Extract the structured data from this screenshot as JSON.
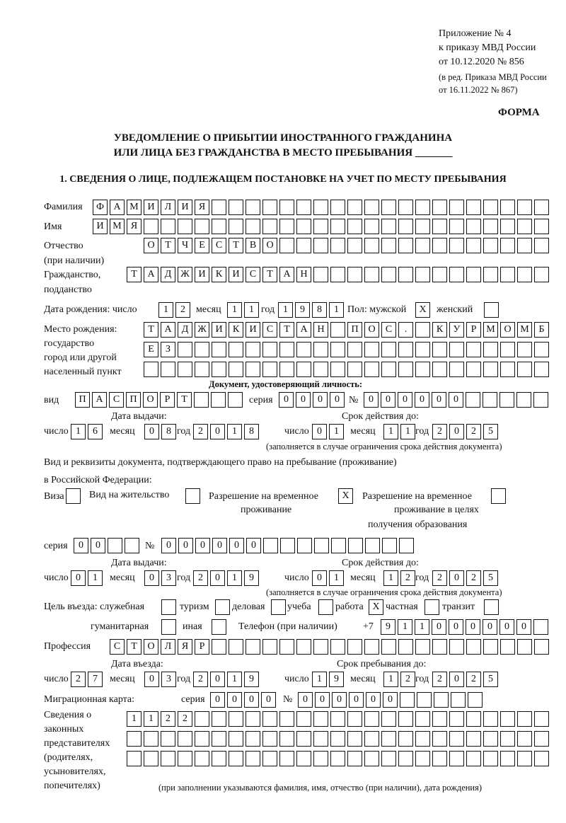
{
  "header": {
    "line1": "Приложение № 4",
    "line2": "к приказу МВД России",
    "line3": "от 10.12.2020 № 856",
    "line4": "(в ред. Приказа МВД России",
    "line5": "от 16.11.2022 № 867)",
    "forma": "ФОРМА"
  },
  "title": {
    "line1": "УВЕДОМЛЕНИЕ О ПРИБЫТИИ ИНОСТРАННОГО ГРАЖДАНИНА",
    "line2": "ИЛИ ЛИЦА БЕЗ ГРАЖДАНСТВА В МЕСТО ПРЕБЫВАНИЯ _______"
  },
  "section1": "1. СВЕДЕНИЯ О ЛИЦЕ, ПОДЛЕЖАЩЕМ ПОСТАНОВКЕ НА УЧЕТ ПО МЕСТУ ПРЕБЫВАНИЯ",
  "labels": {
    "surname": "Фамилия",
    "name": "Имя",
    "patronymic": "Отчество",
    "patronymic2": "(при наличии)",
    "citizenship": "Гражданство,",
    "citizenship2": "подданство",
    "birth_date": "Дата рождения:  число",
    "day": "число",
    "month": "месяц",
    "year": "год",
    "sex": "Пол: мужской",
    "female": "женский",
    "birth_place1": "Место рождения:",
    "birth_place2": "государство",
    "birth_place3": "город или другой",
    "birth_place4": "населенный пункт",
    "id_doc": "Документ, удостоверяющий личность:",
    "kind": "вид",
    "series": "серия",
    "number": "№",
    "issue_date": "Дата выдачи:",
    "valid_until": "Срок действия до:",
    "valid_note": "(заполняется в случае ограничения срока действия документа)",
    "right_doc1": "Вид и реквизиты документа, подтверждающего право на пребывание (проживание)",
    "right_doc2": "в Российской Федерации:",
    "visa": "Виза",
    "residence": "Вид на жительство",
    "temp1": "Разрешение на временное",
    "temp2": "проживание",
    "edu1": "Разрешение на временное",
    "edu2": "проживание в целях",
    "edu3": "получения образования",
    "purpose": "Цель въезда: служебная",
    "tourism": "туризм",
    "business": "деловая",
    "study": "учеба",
    "work": "работа",
    "private": "частная",
    "transit": "транзит",
    "humanitarian": "гуманитарная",
    "other": "иная",
    "phone": "Телефон (при наличии)",
    "phone_prefix": "+7",
    "profession": "Профессия",
    "entry_date": "Дата въезда:",
    "stay_until": "Срок пребывания до:",
    "migration_card": "Миграционная карта:",
    "reps1": "Сведения о",
    "reps2": "законных",
    "reps3": "представителях",
    "reps4": "(родителях,",
    "reps5": "усыновителях,",
    "reps6": "попечителях)",
    "reps_note": "(при заполнении указываются фамилия, имя, отчество (при наличии), дата рождения)"
  },
  "values": {
    "surname": "ФАМИЛИЯ",
    "name": "ИМЯ",
    "patronymic": "ОТЧЕСТВО",
    "citizenship": "ТАДЖИКИСТАН",
    "birth_day": "12",
    "birth_month": "11",
    "birth_year": "1981",
    "male": "X",
    "female": "",
    "birth_place1": "ТАДЖИКИСТАН ПОС. КУРМОМБ",
    "birth_place2": "ЕЗ",
    "birth_place3": "",
    "doc_kind": "ПАСПОРТ",
    "doc_series": "0000",
    "doc_number": "000000",
    "doc_issue_day": "16",
    "doc_issue_month": "08",
    "doc_issue_year": "2018",
    "doc_valid_day": "01",
    "doc_valid_month": "11",
    "doc_valid_year": "2025",
    "visa": "",
    "residence": "",
    "temp_residence": "X",
    "temp_residence_edu": "",
    "right_series": "00",
    "right_number": "000000",
    "right_issue_day": "01",
    "right_issue_month": "03",
    "right_issue_year": "2019",
    "right_valid_day": "01",
    "right_valid_month": "12",
    "right_valid_year": "2025",
    "p_service": "",
    "p_tourism": "",
    "p_business": "",
    "p_study": "",
    "p_work": "X",
    "p_private": "",
    "p_transit": "",
    "p_humanitarian": "",
    "p_other": "",
    "phone": "911000000",
    "profession": "СТОЛЯР",
    "entry_day": "27",
    "entry_month": "03",
    "entry_year": "2019",
    "stay_day": "19",
    "stay_month": "12",
    "stay_year": "2025",
    "mc_series": "0000",
    "mc_number": "000000",
    "reps1": "1122",
    "reps2": "",
    "reps3": ""
  }
}
